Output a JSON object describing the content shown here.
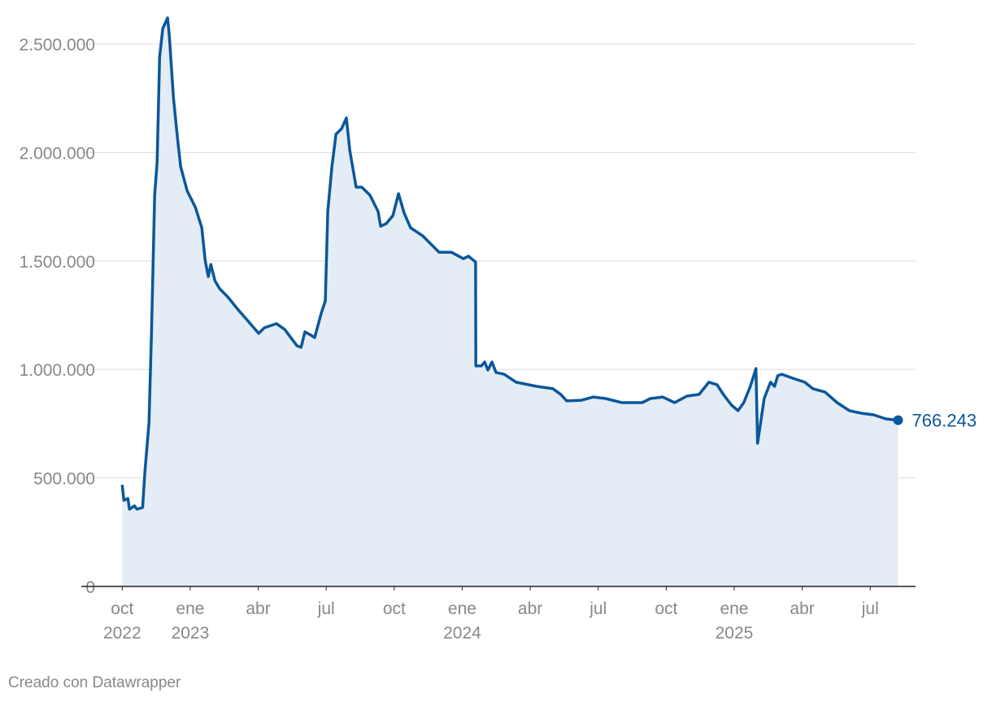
{
  "chart_data": {
    "type": "area",
    "footer": "Creado con Datawrapper",
    "end_label": "766.243",
    "grid": true,
    "xlim": [
      -0.8,
      35
    ],
    "xticks": [
      {
        "value": 0,
        "label": "oct",
        "year": "2022"
      },
      {
        "value": 3,
        "label": "ene",
        "year": "2023"
      },
      {
        "value": 6,
        "label": "abr"
      },
      {
        "value": 9,
        "label": "jul"
      },
      {
        "value": 12,
        "label": "oct"
      },
      {
        "value": 15,
        "label": "ene",
        "year": "2024"
      },
      {
        "value": 18,
        "label": "abr"
      },
      {
        "value": 21,
        "label": "jul"
      },
      {
        "value": 24,
        "label": "oct"
      },
      {
        "value": 27,
        "label": "ene",
        "year": "2025"
      },
      {
        "value": 30,
        "label": "abr"
      },
      {
        "value": 33,
        "label": "jul"
      }
    ],
    "ylim": [
      0,
      2500000
    ],
    "yticks": [
      0,
      {
        "value": 500000,
        "label": "500.000"
      },
      {
        "value": 1000000,
        "label": "1.000.000"
      },
      {
        "value": 1500000,
        "label": "1.500.000"
      },
      {
        "value": 2000000,
        "label": "2.000.000"
      },
      {
        "value": 2500000,
        "label": "2.500.000"
      }
    ],
    "x": [
      0,
      0.07,
      0.25,
      0.32,
      0.54,
      0.65,
      0.9,
      1.0,
      1.18,
      1.29,
      1.43,
      1.54,
      1.65,
      1.79,
      2.0,
      2.08,
      2.26,
      2.44,
      2.58,
      2.87,
      3.23,
      3.51,
      3.66,
      3.8,
      3.91,
      4.09,
      4.3,
      4.66,
      5.09,
      5.56,
      6.02,
      6.27,
      6.81,
      7.17,
      7.71,
      7.89,
      8.06,
      8.32,
      8.49,
      8.78,
      8.96,
      9.07,
      9.25,
      9.43,
      9.68,
      9.89,
      10.04,
      10.32,
      10.57,
      10.93,
      11.29,
      11.4,
      11.65,
      11.94,
      12.19,
      12.44,
      12.72,
      13.26,
      13.98,
      14.52,
      15.05,
      15.27,
      15.59,
      15.6,
      15.84,
      15.99,
      16.13,
      16.31,
      16.49,
      16.85,
      17.38,
      18.28,
      19.0,
      19.35,
      19.61,
      20.25,
      20.79,
      21.33,
      22.04,
      22.94,
      23.3,
      23.84,
      24.37,
      24.91,
      25.45,
      25.88,
      26.24,
      26.52,
      26.88,
      27.17,
      27.42,
      27.71,
      27.96,
      28.03,
      28.32,
      28.6,
      28.78,
      28.92,
      29.1,
      29.57,
      30.11,
      30.47,
      31.0,
      31.54,
      32.08,
      32.62,
      33.15,
      33.69,
      34.23
    ],
    "series": [
      {
        "color": "#0b5799",
        "fill": "#e4ecf5",
        "values": [
          468000,
          397000,
          405000,
          356000,
          371000,
          356000,
          364000,
          528000,
          753000,
          1166000,
          1803000,
          1953000,
          2440000,
          2571000,
          2620000,
          2534000,
          2253000,
          2065000,
          1934000,
          1822000,
          1747000,
          1653000,
          1503000,
          1428000,
          1484000,
          1409000,
          1372000,
          1334000,
          1278000,
          1222000,
          1166000,
          1192000,
          1211000,
          1184000,
          1109000,
          1102000,
          1173000,
          1158000,
          1147000,
          1259000,
          1316000,
          1728000,
          1934000,
          2084000,
          2110000,
          2159000,
          2009000,
          1840000,
          1840000,
          1803000,
          1728000,
          1660000,
          1672000,
          1709000,
          1810000,
          1720000,
          1653000,
          1615000,
          1540000,
          1540000,
          1510000,
          1522000,
          1495000,
          1016000,
          1016000,
          1034000,
          997000,
          1034000,
          986000,
          978000,
          941000,
          922000,
          911000,
          885000,
          855000,
          858000,
          873000,
          866000,
          847000,
          847000,
          866000,
          873000,
          847000,
          877000,
          885000,
          941000,
          930000,
          885000,
          836000,
          810000,
          847000,
          922000,
          1004000,
          660000,
          866000,
          941000,
          922000,
          971000,
          978000,
          960000,
          941000,
          911000,
          896000,
          847000,
          810000,
          798000,
          791000,
          772000,
          766243
        ]
      }
    ]
  }
}
